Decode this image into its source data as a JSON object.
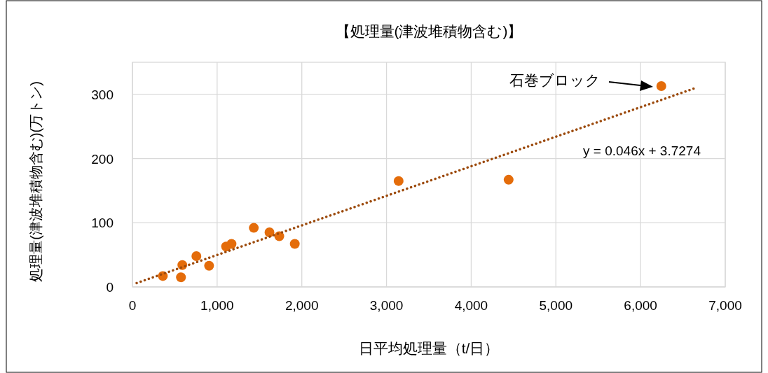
{
  "chart_data": {
    "type": "scatter",
    "title": "【処理量(津波堆積物含む)】",
    "xlabel": "日平均処理量（t/日）",
    "ylabel": "処理量(津波堆積物含む)(万トン)",
    "xlim": [
      0,
      7000
    ],
    "xticks": [
      0,
      {
        "value": 1000,
        "label": "1,000"
      },
      {
        "value": 2000,
        "label": "2,000"
      },
      {
        "value": 3000,
        "label": "3,000"
      },
      {
        "value": 4000,
        "label": "4,000"
      },
      {
        "value": 5000,
        "label": "5,000"
      },
      {
        "value": 6000,
        "label": "6,000"
      },
      {
        "value": 7000,
        "label": "7,000"
      }
    ],
    "ylim": [
      0,
      350
    ],
    "yticks": [
      0,
      100,
      200,
      300
    ],
    "grid": true,
    "series": [
      {
        "type": "scatter",
        "marker": "circle",
        "color": "#e46c0a",
        "x": [
          359,
          573,
          589,
          755,
          905,
          1106,
          1170,
          1433,
          1618,
          1734,
          1917,
          3143,
          4442,
          6245
        ],
        "values": [
          17,
          15,
          34,
          48,
          33,
          63,
          67,
          92,
          85,
          79,
          67,
          165,
          167,
          313
        ]
      },
      {
        "type": "line",
        "color": "#9c4a0c",
        "line_style": "dotted",
        "x": [
          50,
          6650
        ],
        "values": [
          6,
          310
        ]
      }
    ],
    "annotations": [
      "石巻ブロック",
      "y = 0.046x + 3.7274"
    ]
  }
}
